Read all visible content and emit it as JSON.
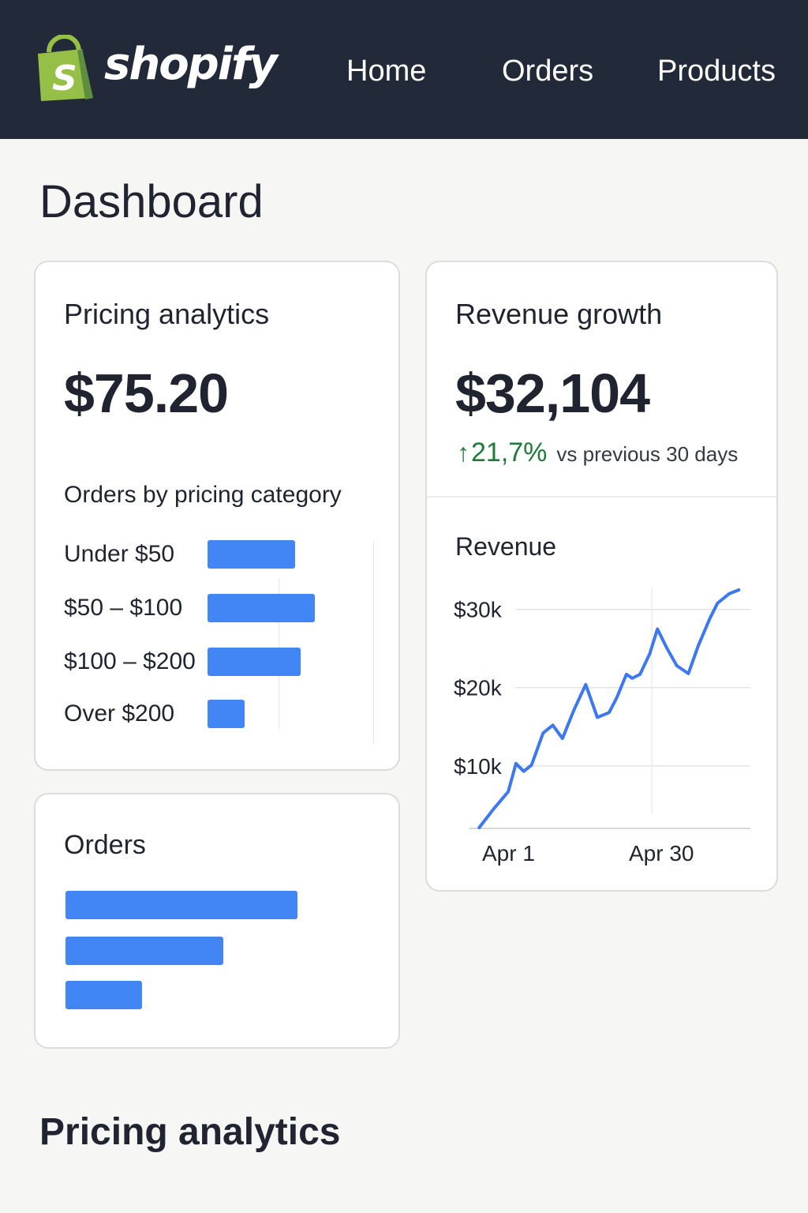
{
  "header": {
    "brand": "shopify",
    "nav": [
      "Home",
      "Orders",
      "Products"
    ],
    "brand_color": "#95bf47",
    "background_color": "#222938"
  },
  "page": {
    "title": "Dashboard",
    "bottom_title": "Pricing analytics"
  },
  "pricing_card": {
    "title": "Pricing analytics",
    "value": "$75.20",
    "subtitle": "Orders by pricing category"
  },
  "orders_card": {
    "title": "Orders"
  },
  "revenue_card": {
    "title": "Revenue growth",
    "value": "$32,104",
    "growth_arrow": "↑",
    "growth_percent": "21,7%",
    "growth_text": "vs previous 30 days",
    "chart_title": "Revenue"
  },
  "colors": {
    "accent": "#4285f4",
    "positive": "#1f7a3a"
  },
  "chart_data": [
    {
      "type": "bar",
      "orientation": "horizontal",
      "title": "Orders by pricing category",
      "categories": [
        "Under $50",
        "$50 – $100",
        "$100 – $200",
        "Over $200"
      ],
      "values": [
        68,
        83,
        72,
        29
      ],
      "xlim": [
        0,
        110
      ]
    },
    {
      "type": "bar",
      "orientation": "horizontal",
      "title": "Orders",
      "categories": [
        "",
        "",
        ""
      ],
      "values": [
        100,
        68,
        33
      ],
      "xlim": [
        0,
        100
      ]
    },
    {
      "type": "line",
      "title": "Revenue",
      "xlabel": "",
      "ylabel": "",
      "x_tick_labels": [
        "Apr 1",
        "Apr 30"
      ],
      "y_tick_labels": [
        "$10k",
        "$20k",
        "$30k"
      ],
      "y_ticks": [
        10000,
        20000,
        30000
      ],
      "ylim": [
        2000,
        33000
      ],
      "grid": true,
      "series": [
        {
          "x": [
            1,
            2.5,
            4,
            4.8,
            5.6,
            6.4,
            7.6,
            8.6,
            9.6,
            10.8,
            12,
            13.2,
            14.4,
            15.2,
            16.2,
            16.8,
            17.6,
            18.6,
            19.4,
            20.4,
            21.4,
            22.6,
            23.6,
            24.8,
            25.6,
            26.8,
            27.8
          ],
          "y": [
            2100,
            4500,
            6700,
            10300,
            9300,
            10100,
            14200,
            15200,
            13500,
            17200,
            20400,
            16200,
            16800,
            18700,
            21700,
            21200,
            21700,
            24300,
            27500,
            25000,
            22800,
            21800,
            25300,
            28800,
            30800,
            32000,
            32500
          ]
        }
      ]
    }
  ]
}
